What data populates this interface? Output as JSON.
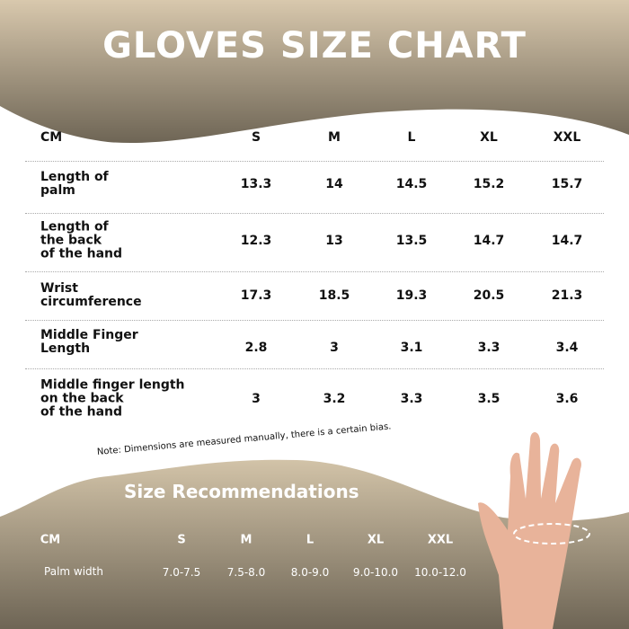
{
  "title": "GLOVES SIZE CHART",
  "colors": {
    "band_top": "#d8c8ad",
    "band_bottom": "#6e6555",
    "text": "#111111"
  },
  "chart_data": {
    "type": "table",
    "columns": [
      "CM",
      "S",
      "M",
      "L",
      "XL",
      "XXL"
    ],
    "rows": [
      {
        "label": "Length of palm",
        "values": [
          "13.3",
          "14",
          "14.5",
          "15.2",
          "15.7"
        ]
      },
      {
        "label": "Length of the back of the hand",
        "values": [
          "12.3",
          "13",
          "13.5",
          "14.7",
          "14.7"
        ]
      },
      {
        "label": "Wrist circumference",
        "values": [
          "17.3",
          "18.5",
          "19.3",
          "20.5",
          "21.3"
        ]
      },
      {
        "label": "Middle Finger Length",
        "values": [
          "2.8",
          "3",
          "3.1",
          "3.3",
          "3.4"
        ]
      },
      {
        "label": "Middle finger length on the back of the hand",
        "values": [
          "3",
          "3.2",
          "3.3",
          "3.5",
          "3.6"
        ]
      }
    ]
  },
  "note": "Note: Dimensions are measured manually, there is a certain bias.",
  "recommendations": {
    "title": "Size Recommendations",
    "columns": [
      "CM",
      "S",
      "M",
      "L",
      "XL",
      "XXL"
    ],
    "row": {
      "label": "Palm width",
      "values": [
        "7.0-7.5",
        "7.5-8.0",
        "8.0-9.0",
        "9.0-10.0",
        "10.0-12.0"
      ]
    }
  }
}
